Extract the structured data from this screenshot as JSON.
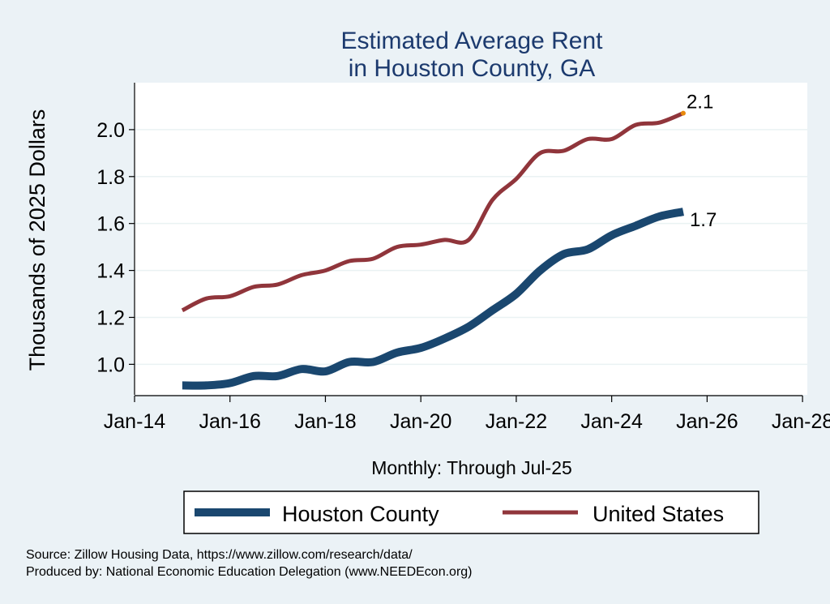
{
  "chart_data": {
    "type": "line",
    "title": [
      "Estimated Average Rent",
      "in Houston County, GA"
    ],
    "ylabel": "Thousands of 2025 Dollars",
    "xlabel": "Monthly: Through Jul-25",
    "ylim": [
      0.87,
      2.2
    ],
    "xlim": [
      2014.0,
      2028.1
    ],
    "y_ticks": [
      1.0,
      1.2,
      1.4,
      1.6,
      1.8,
      2.0
    ],
    "y_tick_labels": [
      "1.0",
      "1.2",
      "1.4",
      "1.6",
      "1.8",
      "2.0"
    ],
    "x_ticks": [
      2014,
      2016,
      2018,
      2020,
      2022,
      2024,
      2026,
      2028
    ],
    "x_tick_labels": [
      "Jan-14",
      "Jan-16",
      "Jan-18",
      "Jan-20",
      "Jan-22",
      "Jan-24",
      "Jan-26",
      "Jan-28"
    ],
    "grid": "horizontal",
    "legend_position": "bottom",
    "series": [
      {
        "name": "Houston County",
        "color": "#1a476f",
        "end_label": "1.7",
        "points": [
          [
            "2015-01",
            0.91
          ],
          [
            "2015-07",
            0.91
          ],
          [
            "2016-01",
            0.92
          ],
          [
            "2016-07",
            0.95
          ],
          [
            "2017-01",
            0.95
          ],
          [
            "2017-07",
            0.98
          ],
          [
            "2018-01",
            0.97
          ],
          [
            "2018-07",
            1.01
          ],
          [
            "2019-01",
            1.01
          ],
          [
            "2019-07",
            1.05
          ],
          [
            "2020-01",
            1.07
          ],
          [
            "2020-07",
            1.11
          ],
          [
            "2021-01",
            1.16
          ],
          [
            "2021-07",
            1.23
          ],
          [
            "2022-01",
            1.3
          ],
          [
            "2022-07",
            1.4
          ],
          [
            "2023-01",
            1.47
          ],
          [
            "2023-07",
            1.49
          ],
          [
            "2024-01",
            1.55
          ],
          [
            "2024-07",
            1.59
          ],
          [
            "2025-01",
            1.63
          ],
          [
            "2025-07",
            1.65
          ]
        ]
      },
      {
        "name": "United States",
        "color": "#90353b",
        "end_label": "2.1",
        "points": [
          [
            "2015-01",
            1.23
          ],
          [
            "2015-07",
            1.28
          ],
          [
            "2016-01",
            1.29
          ],
          [
            "2016-07",
            1.33
          ],
          [
            "2017-01",
            1.34
          ],
          [
            "2017-07",
            1.38
          ],
          [
            "2018-01",
            1.4
          ],
          [
            "2018-07",
            1.44
          ],
          [
            "2019-01",
            1.45
          ],
          [
            "2019-07",
            1.5
          ],
          [
            "2020-01",
            1.51
          ],
          [
            "2020-07",
            1.53
          ],
          [
            "2021-01",
            1.53
          ],
          [
            "2021-07",
            1.7
          ],
          [
            "2022-01",
            1.79
          ],
          [
            "2022-07",
            1.9
          ],
          [
            "2023-01",
            1.91
          ],
          [
            "2023-07",
            1.96
          ],
          [
            "2024-01",
            1.96
          ],
          [
            "2024-07",
            2.02
          ],
          [
            "2025-01",
            2.03
          ],
          [
            "2025-07",
            2.07
          ]
        ]
      }
    ]
  },
  "footer": {
    "source": "Source: Zillow Housing Data, https://www.zillow.com/research/data/",
    "produced_by": "Produced by: National Economic Education Delegation (www.NEEDEcon.org)"
  },
  "colors": {
    "background": "#ebf2f6",
    "plot_background": "#ffffff",
    "title": "#1c3a6e",
    "end_marker": "#e8890c"
  }
}
